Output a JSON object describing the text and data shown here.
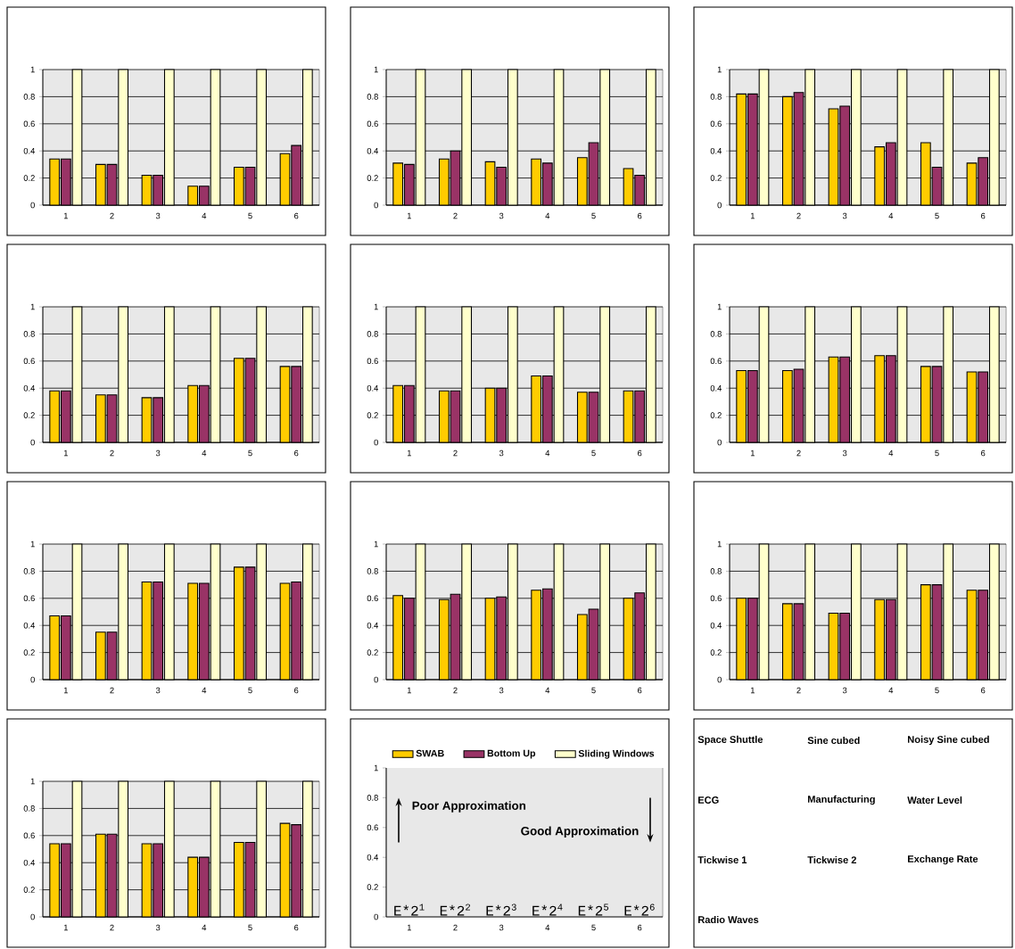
{
  "chart_data": [
    {
      "type": "bar",
      "categories": [
        "1",
        "2",
        "3",
        "4",
        "5",
        "6"
      ],
      "ylim": [
        0,
        1
      ],
      "yticks": [
        0,
        0.2,
        0.4,
        0.6,
        0.8,
        1
      ],
      "grid": "y",
      "series": [
        {
          "color": "#ffcc00",
          "values": [
            0.34,
            0.3,
            0.22,
            0.14,
            0.28,
            0.38
          ]
        },
        {
          "color": "#993366",
          "values": [
            0.34,
            0.3,
            0.22,
            0.14,
            0.28,
            0.44
          ]
        },
        {
          "color": "#ffffcc",
          "values": [
            1,
            1,
            1,
            1,
            1,
            1
          ]
        }
      ]
    },
    {
      "type": "bar",
      "categories": [
        "1",
        "2",
        "3",
        "4",
        "5",
        "6"
      ],
      "ylim": [
        0,
        1
      ],
      "yticks": [
        0,
        0.2,
        0.4,
        0.6,
        0.8,
        1
      ],
      "grid": "y",
      "series": [
        {
          "color": "#ffcc00",
          "values": [
            0.31,
            0.34,
            0.32,
            0.34,
            0.35,
            0.27
          ]
        },
        {
          "color": "#993366",
          "values": [
            0.3,
            0.4,
            0.28,
            0.31,
            0.46,
            0.22
          ]
        },
        {
          "color": "#ffffcc",
          "values": [
            1,
            1,
            1,
            1,
            1,
            1
          ]
        }
      ]
    },
    {
      "type": "bar",
      "categories": [
        "1",
        "2",
        "3",
        "4",
        "5",
        "6"
      ],
      "ylim": [
        0,
        1
      ],
      "yticks": [
        0,
        0.2,
        0.4,
        0.6,
        0.8,
        1
      ],
      "grid": "y",
      "series": [
        {
          "color": "#ffcc00",
          "values": [
            0.82,
            0.8,
            0.71,
            0.43,
            0.46,
            0.31
          ]
        },
        {
          "color": "#993366",
          "values": [
            0.82,
            0.83,
            0.73,
            0.46,
            0.28,
            0.35
          ]
        },
        {
          "color": "#ffffcc",
          "values": [
            1,
            1,
            1,
            1,
            1,
            1
          ]
        }
      ]
    },
    {
      "type": "bar",
      "categories": [
        "1",
        "2",
        "3",
        "4",
        "5",
        "6"
      ],
      "ylim": [
        0,
        1
      ],
      "yticks": [
        0,
        0.2,
        0.4,
        0.6,
        0.8,
        1
      ],
      "grid": "y",
      "series": [
        {
          "color": "#ffcc00",
          "values": [
            0.38,
            0.35,
            0.33,
            0.42,
            0.62,
            0.56
          ]
        },
        {
          "color": "#993366",
          "values": [
            0.38,
            0.35,
            0.33,
            0.42,
            0.62,
            0.56
          ]
        },
        {
          "color": "#ffffcc",
          "values": [
            1,
            1,
            1,
            1,
            1,
            1
          ]
        }
      ]
    },
    {
      "type": "bar",
      "categories": [
        "1",
        "2",
        "3",
        "4",
        "5",
        "6"
      ],
      "ylim": [
        0,
        1
      ],
      "yticks": [
        0,
        0.2,
        0.4,
        0.6,
        0.8,
        1
      ],
      "grid": "y",
      "series": [
        {
          "color": "#ffcc00",
          "values": [
            0.42,
            0.38,
            0.4,
            0.49,
            0.37,
            0.38
          ]
        },
        {
          "color": "#993366",
          "values": [
            0.42,
            0.38,
            0.4,
            0.49,
            0.37,
            0.38
          ]
        },
        {
          "color": "#ffffcc",
          "values": [
            1,
            1,
            1,
            1,
            1,
            1
          ]
        }
      ]
    },
    {
      "type": "bar",
      "categories": [
        "1",
        "2",
        "3",
        "4",
        "5",
        "6"
      ],
      "ylim": [
        0,
        1
      ],
      "yticks": [
        0,
        0.2,
        0.4,
        0.6,
        0.8,
        1
      ],
      "grid": "y",
      "series": [
        {
          "color": "#ffcc00",
          "values": [
            0.53,
            0.53,
            0.63,
            0.64,
            0.56,
            0.52
          ]
        },
        {
          "color": "#993366",
          "values": [
            0.53,
            0.54,
            0.63,
            0.64,
            0.56,
            0.52
          ]
        },
        {
          "color": "#ffffcc",
          "values": [
            1,
            1,
            1,
            1,
            1,
            1
          ]
        }
      ]
    },
    {
      "type": "bar",
      "categories": [
        "1",
        "2",
        "3",
        "4",
        "5",
        "6"
      ],
      "ylim": [
        0,
        1
      ],
      "yticks": [
        0,
        0.2,
        0.4,
        0.6,
        0.8,
        1
      ],
      "grid": "y",
      "series": [
        {
          "color": "#ffcc00",
          "values": [
            0.47,
            0.35,
            0.72,
            0.71,
            0.83,
            0.71
          ]
        },
        {
          "color": "#993366",
          "values": [
            0.47,
            0.35,
            0.72,
            0.71,
            0.83,
            0.72
          ]
        },
        {
          "color": "#ffffcc",
          "values": [
            1,
            1,
            1,
            1,
            1,
            1
          ]
        }
      ]
    },
    {
      "type": "bar",
      "categories": [
        "1",
        "2",
        "3",
        "4",
        "5",
        "6"
      ],
      "ylim": [
        0,
        1
      ],
      "yticks": [
        0,
        0.2,
        0.4,
        0.6,
        0.8,
        1
      ],
      "grid": "y",
      "series": [
        {
          "color": "#ffcc00",
          "values": [
            0.62,
            0.59,
            0.6,
            0.66,
            0.48,
            0.6
          ]
        },
        {
          "color": "#993366",
          "values": [
            0.6,
            0.63,
            0.61,
            0.67,
            0.52,
            0.64
          ]
        },
        {
          "color": "#ffffcc",
          "values": [
            1,
            1,
            1,
            1,
            1,
            1
          ]
        }
      ]
    },
    {
      "type": "bar",
      "categories": [
        "1",
        "2",
        "3",
        "4",
        "5",
        "6"
      ],
      "ylim": [
        0,
        1
      ],
      "yticks": [
        0,
        0.2,
        0.4,
        0.6,
        0.8,
        1
      ],
      "grid": "y",
      "series": [
        {
          "color": "#ffcc00",
          "values": [
            0.6,
            0.56,
            0.49,
            0.59,
            0.7,
            0.66
          ]
        },
        {
          "color": "#993366",
          "values": [
            0.6,
            0.56,
            0.49,
            0.59,
            0.7,
            0.66
          ]
        },
        {
          "color": "#ffffcc",
          "values": [
            1,
            1,
            1,
            1,
            1,
            1
          ]
        }
      ]
    },
    {
      "type": "bar",
      "categories": [
        "1",
        "2",
        "3",
        "4",
        "5",
        "6"
      ],
      "ylim": [
        0,
        1
      ],
      "yticks": [
        0,
        0.2,
        0.4,
        0.6,
        0.8,
        1
      ],
      "grid": "y",
      "series": [
        {
          "color": "#ffcc00",
          "values": [
            0.54,
            0.61,
            0.54,
            0.44,
            0.55,
            0.69
          ]
        },
        {
          "color": "#993366",
          "values": [
            0.54,
            0.61,
            0.54,
            0.44,
            0.55,
            0.68
          ]
        },
        {
          "color": "#ffffcc",
          "values": [
            1,
            1,
            1,
            1,
            1,
            1
          ]
        }
      ]
    },
    {
      "type": "bar",
      "categories": [
        "1",
        "2",
        "3",
        "4",
        "5",
        "6"
      ],
      "ylim": [
        0,
        1
      ],
      "yticks": [
        0,
        0.2,
        0.4,
        0.6,
        0.8,
        1
      ],
      "legend": "top",
      "series": [
        {
          "name": "SWAB",
          "color": "#ffcc00",
          "values": [
            null,
            null,
            null,
            null,
            null,
            null
          ]
        },
        {
          "name": "Bottom Up",
          "color": "#993366",
          "values": [
            null,
            null,
            null,
            null,
            null,
            null
          ]
        },
        {
          "name": "Sliding Windows",
          "color": "#ffffcc",
          "values": [
            null,
            null,
            null,
            null,
            null,
            null
          ]
        }
      ],
      "annotations": [
        "Poor Approximation",
        "Good Approximation",
        "E*2$^{1}$",
        "E*2$^{2}$",
        "E*2$^{3}$",
        "E*2$^{4}$",
        "E*2$^{5}$",
        "E*2$^{6}$"
      ]
    },
    {
      "type": "other",
      "annotations": [
        "Space Shuttle",
        "Sine cubed",
        "Noisy Sine cubed",
        "ECG",
        "Manufacturing",
        "Water Level",
        "Tickwise 1",
        "Tickwise 2",
        "Exchange Rate",
        "Radio Waves"
      ]
    }
  ]
}
